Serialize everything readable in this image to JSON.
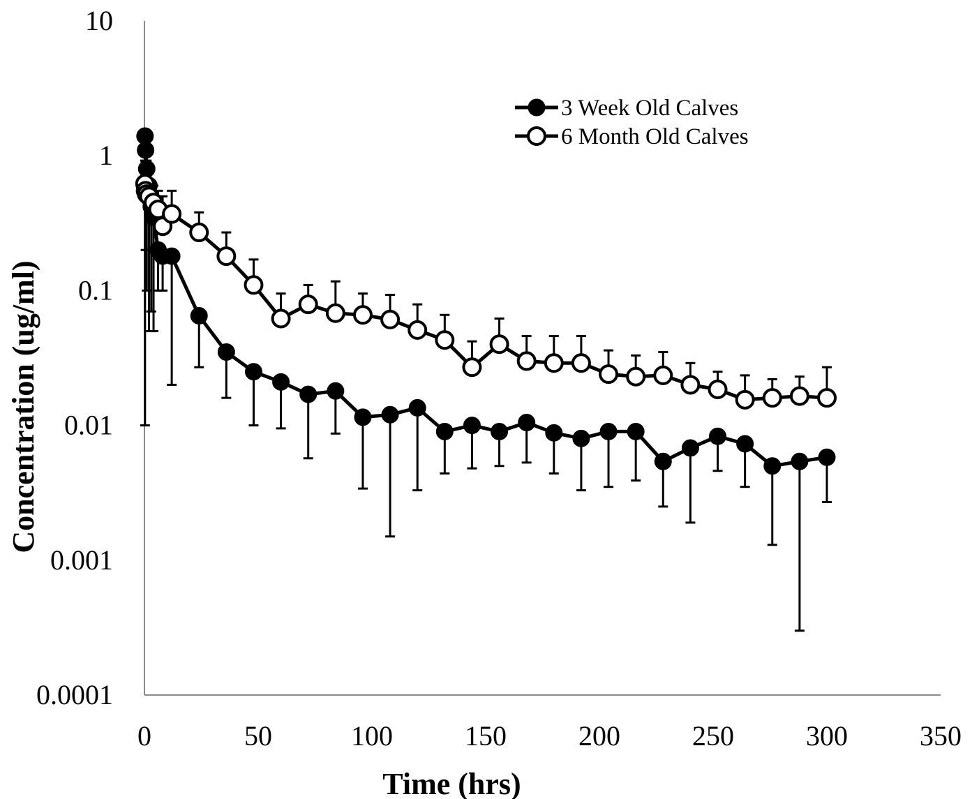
{
  "chart_data": {
    "type": "line",
    "xlabel": "Time (hrs)",
    "ylabel": "Concentration (ug/ml)",
    "y_scale": "log",
    "xlim": [
      0,
      350
    ],
    "ylim": [
      0.0001,
      10
    ],
    "x_ticks": [
      0,
      50,
      100,
      150,
      200,
      250,
      300,
      350
    ],
    "x_tick_labels": [
      "0",
      "50",
      "100",
      "150",
      "200",
      "250",
      "300",
      "350"
    ],
    "y_ticks": [
      0.0001,
      0.001,
      0.01,
      0.1,
      1,
      10
    ],
    "y_tick_labels": [
      "0.0001",
      "0.001",
      "0.01",
      "0.1",
      "1",
      "10"
    ],
    "grid": false,
    "legend_position": "top-right",
    "series": [
      {
        "name": "3 Week Old Calves",
        "marker": "filled-circle",
        "color": "#000000",
        "error_bar_direction": "down",
        "x": [
          0.25,
          0.5,
          1,
          2,
          3,
          4,
          6,
          8,
          12,
          24,
          36,
          48,
          60,
          72,
          84,
          96,
          108,
          120,
          132,
          144,
          156,
          168,
          180,
          192,
          204,
          216,
          228,
          240,
          252,
          264,
          276,
          288,
          300
        ],
        "y": [
          1.4,
          1.1,
          0.8,
          0.6,
          0.42,
          0.35,
          0.2,
          0.18,
          0.18,
          0.065,
          0.035,
          0.025,
          0.021,
          0.017,
          0.018,
          0.0115,
          0.012,
          0.0135,
          0.009,
          0.01,
          0.009,
          0.0105,
          0.0088,
          0.008,
          0.009,
          0.009,
          0.0054,
          0.0068,
          0.0083,
          0.0073,
          0.005,
          0.0054,
          0.0058
        ],
        "error": [
          1.39,
          0.9,
          0.7,
          0.55,
          0.35,
          0.3,
          0.1,
          0.08,
          0.16,
          0.038,
          0.019,
          0.015,
          0.0115,
          0.0113,
          0.0093,
          0.0081,
          0.0105,
          0.0102,
          0.0046,
          0.0052,
          0.004,
          0.0052,
          0.0044,
          0.0047,
          0.0055,
          0.0051,
          0.0029,
          0.0049,
          0.0037,
          0.0038,
          0.0037,
          0.0051,
          0.0031
        ]
      },
      {
        "name": "6 Month Old Calves",
        "marker": "open-circle",
        "color": "#000000",
        "error_bar_direction": "up",
        "x": [
          0.25,
          0.5,
          1,
          2,
          4,
          6,
          8,
          12,
          24,
          36,
          48,
          60,
          72,
          84,
          96,
          108,
          120,
          132,
          144,
          156,
          168,
          180,
          192,
          204,
          216,
          228,
          240,
          252,
          264,
          276,
          288,
          300
        ],
        "y": [
          0.62,
          0.55,
          0.52,
          0.5,
          0.45,
          0.4,
          0.3,
          0.37,
          0.27,
          0.18,
          0.11,
          0.062,
          0.079,
          0.068,
          0.066,
          0.061,
          0.051,
          0.043,
          0.027,
          0.04,
          0.03,
          0.029,
          0.029,
          0.024,
          0.023,
          0.0235,
          0.02,
          0.0185,
          0.0155,
          0.016,
          0.0165,
          0.016
        ],
        "error": [
          0.3,
          0.35,
          0.4,
          0.3,
          0.15,
          0.15,
          0.2,
          0.18,
          0.11,
          0.09,
          0.06,
          0.033,
          0.031,
          0.049,
          0.029,
          0.032,
          0.028,
          0.023,
          0.015,
          0.022,
          0.016,
          0.017,
          0.017,
          0.012,
          0.01,
          0.0115,
          0.009,
          0.0065,
          0.008,
          0.006,
          0.0065,
          0.011
        ]
      }
    ]
  }
}
